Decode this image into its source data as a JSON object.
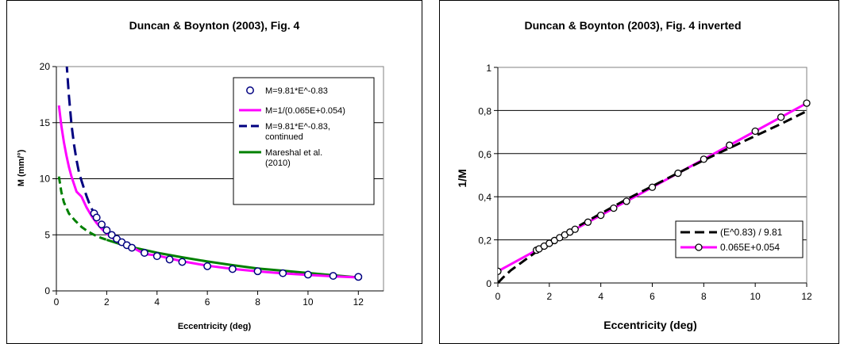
{
  "chart_data": [
    {
      "type": "scatter",
      "title": "Duncan & Boynton (2003), Fig. 4",
      "xlabel": "Eccentricity (deg)",
      "ylabel": "M (mm/°)",
      "xlim": [
        0,
        13
      ],
      "ylim": [
        0,
        20
      ],
      "x_ticks": [
        "0",
        "2",
        "4",
        "6",
        "8",
        "10",
        "12"
      ],
      "y_ticks": [
        "0",
        "5",
        "10",
        "15",
        "20"
      ],
      "grid": "horizontal",
      "legend_position": "right",
      "series": [
        {
          "name": "M=9.81*E^-0.83",
          "style": "markers",
          "color": "#000080",
          "x": [
            1.5,
            1.6,
            1.8,
            2.0,
            2.2,
            2.4,
            2.6,
            2.8,
            3.0,
            3.5,
            4.0,
            4.5,
            5.0,
            6.0,
            7.0,
            8.0,
            9.0,
            10.0,
            11.0,
            12.0
          ],
          "y": [
            6.91,
            6.54,
            5.92,
            5.41,
            4.99,
            4.64,
            4.34,
            4.08,
            3.85,
            3.39,
            3.1,
            2.8,
            2.58,
            2.2,
            1.95,
            1.75,
            1.58,
            1.45,
            1.34,
            1.25
          ]
        },
        {
          "name": "M=1/(0.065E+0.054)",
          "style": "line",
          "color": "#ff00ff",
          "x": [
            0.1,
            0.2,
            0.3,
            0.4,
            0.5,
            0.6,
            0.8,
            1.0,
            1.2,
            1.4,
            1.6,
            1.8,
            2.0,
            2.5,
            3.0,
            3.5,
            4.0,
            5.0,
            6.0,
            7.0,
            8.0,
            9.0,
            10.0,
            11.0,
            12.0
          ],
          "y": [
            16.53,
            14.71,
            13.25,
            12.05,
            11.05,
            10.2,
            8.85,
            8.4,
            7.44,
            6.68,
            6.05,
            5.54,
            5.1,
            4.29,
            3.9,
            3.29,
            3.16,
            2.64,
            2.25,
            1.96,
            1.74,
            1.56,
            1.42,
            1.3,
            1.2
          ]
        },
        {
          "name": "M=9.81*E^-0.83, continued",
          "style": "dashed",
          "color": "#000080",
          "x": [
            0.4,
            0.5,
            0.6,
            0.7,
            0.8,
            0.9,
            1.0,
            1.1,
            1.2,
            1.3,
            1.4,
            1.5,
            1.6
          ],
          "y": [
            20.45,
            17.4,
            14.85,
            13.05,
            11.66,
            10.55,
            9.81,
            9.11,
            8.45,
            7.85,
            7.35,
            6.91,
            6.54
          ]
        },
        {
          "name": "Mareshal et al. (2010)",
          "style": "line+dashed",
          "color": "#008000",
          "dashed_until_x": 2.0,
          "x": [
            0.1,
            0.2,
            0.3,
            0.5,
            0.75,
            1.0,
            1.25,
            1.5,
            1.75,
            2.0,
            2.5,
            3.0,
            4.0,
            5.0,
            6.0,
            7.0,
            8.0,
            9.0,
            10.0,
            11.0,
            12.0
          ],
          "y": [
            10.2,
            8.8,
            7.9,
            6.9,
            6.25,
            5.7,
            5.3,
            5.0,
            4.75,
            4.55,
            4.2,
            3.9,
            3.4,
            3.0,
            2.62,
            2.3,
            2.0,
            1.8,
            1.6,
            1.4,
            1.2
          ]
        }
      ]
    },
    {
      "type": "line",
      "title": "Duncan & Boynton (2003), Fig. 4 inverted",
      "xlabel": "Eccentricity (deg)",
      "ylabel": "1/M",
      "xlim": [
        0,
        12
      ],
      "ylim": [
        0,
        1
      ],
      "x_ticks": [
        "0",
        "2",
        "4",
        "6",
        "8",
        "10",
        "12"
      ],
      "y_ticks": [
        "0",
        "0,2",
        "0,4",
        "0,6",
        "0,8",
        "1"
      ],
      "grid": "horizontal",
      "legend_position": "bottom-right",
      "series": [
        {
          "name": "(E^0.83) / 9.81",
          "style": "dashed",
          "color": "#000000",
          "x": [
            0,
            0.2,
            0.5,
            1.0,
            1.5,
            2.0,
            3.0,
            4.0,
            5.0,
            6.0,
            7.0,
            8.0,
            9.0,
            10.0,
            11.0,
            12.0
          ],
          "y": [
            0.0,
            0.025,
            0.058,
            0.102,
            0.145,
            0.181,
            0.255,
            0.322,
            0.388,
            0.449,
            0.51,
            0.569,
            0.626,
            0.682,
            0.738,
            0.797
          ]
        },
        {
          "name": "0.065E+0.054",
          "style": "line+markers",
          "color": "#ff00ff",
          "marker_color": "#000000",
          "x": [
            0,
            1.5,
            1.6,
            1.8,
            2.0,
            2.2,
            2.4,
            2.6,
            2.8,
            3.0,
            3.5,
            4.0,
            4.5,
            5.0,
            6.0,
            7.0,
            8.0,
            9.0,
            10.0,
            11.0,
            12.0
          ],
          "y": [
            0.054,
            0.152,
            0.158,
            0.171,
            0.184,
            0.197,
            0.21,
            0.223,
            0.236,
            0.249,
            0.282,
            0.314,
            0.347,
            0.379,
            0.444,
            0.509,
            0.574,
            0.639,
            0.704,
            0.769,
            0.834
          ]
        }
      ]
    }
  ]
}
